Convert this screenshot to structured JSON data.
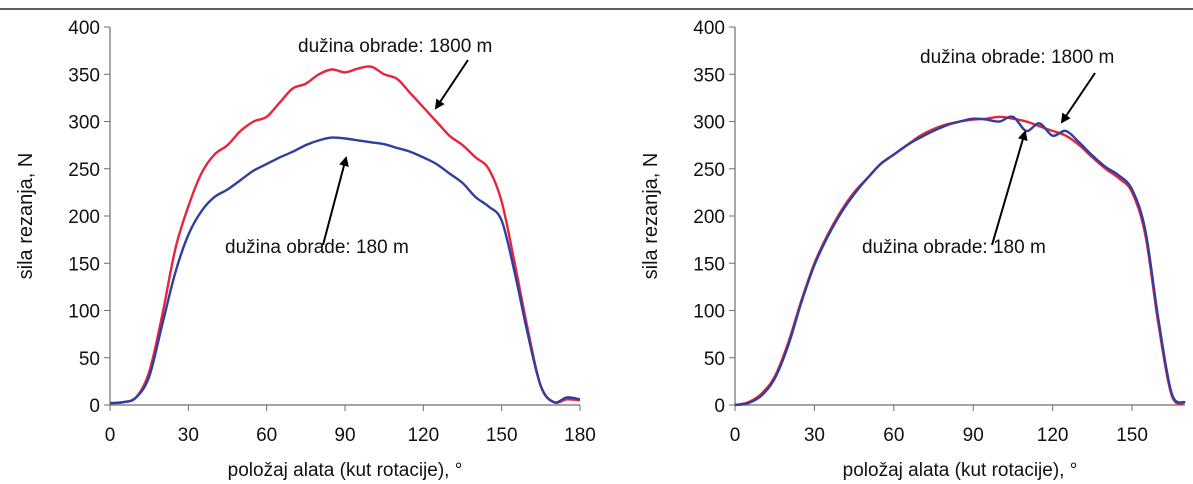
{
  "figure": {
    "colors": {
      "long_cut": "#e8243c",
      "short_cut": "#2f3fa0",
      "axis": "#6e6e6e",
      "text": "#111111"
    }
  },
  "chart_data": [
    {
      "type": "line",
      "title": "",
      "xlabel": "položaj alata (kut rotacije), °",
      "ylabel": "sila rezanja, N",
      "xlim": [
        0,
        180
      ],
      "ylim": [
        0,
        400
      ],
      "xticks": [
        0,
        30,
        60,
        90,
        120,
        150,
        180
      ],
      "yticks": [
        0,
        50,
        100,
        150,
        200,
        250,
        300,
        350,
        400
      ],
      "grid": false,
      "legend": "none",
      "annotations": [
        {
          "text": "dužina obrade: 1800 m",
          "points_to_series": 0
        },
        {
          "text": "dužina obrade: 180 m",
          "points_to_series": 1
        }
      ],
      "series": [
        {
          "color": "#e8243c",
          "x": [
            0,
            5,
            10,
            15,
            20,
            25,
            30,
            35,
            40,
            45,
            50,
            55,
            60,
            65,
            70,
            75,
            80,
            85,
            90,
            95,
            100,
            105,
            110,
            115,
            120,
            125,
            130,
            135,
            140,
            145,
            150,
            155,
            160,
            165,
            170,
            175,
            180
          ],
          "values": [
            2,
            3,
            8,
            35,
            95,
            165,
            210,
            245,
            265,
            275,
            290,
            300,
            305,
            320,
            335,
            340,
            350,
            355,
            352,
            356,
            358,
            350,
            345,
            330,
            315,
            300,
            285,
            275,
            262,
            250,
            215,
            150,
            80,
            20,
            3,
            6,
            5
          ]
        },
        {
          "color": "#2f3fa0",
          "x": [
            0,
            5,
            10,
            15,
            20,
            25,
            30,
            35,
            40,
            45,
            50,
            55,
            60,
            65,
            70,
            75,
            80,
            85,
            90,
            95,
            100,
            105,
            110,
            115,
            120,
            125,
            130,
            135,
            140,
            145,
            150,
            155,
            160,
            165,
            170,
            175,
            180
          ],
          "values": [
            2,
            3,
            8,
            30,
            85,
            140,
            180,
            205,
            220,
            228,
            238,
            248,
            255,
            262,
            268,
            275,
            280,
            283,
            282,
            280,
            278,
            276,
            272,
            268,
            262,
            255,
            245,
            235,
            220,
            210,
            195,
            140,
            75,
            20,
            3,
            8,
            6
          ]
        }
      ]
    },
    {
      "type": "line",
      "title": "",
      "xlabel": "položaj alata (kut rotacije), °",
      "ylabel": "sila rezanja, N",
      "xlim": [
        0,
        170
      ],
      "ylim": [
        0,
        400
      ],
      "xticks": [
        0,
        30,
        60,
        90,
        120,
        150
      ],
      "yticks": [
        0,
        50,
        100,
        150,
        200,
        250,
        300,
        350,
        400
      ],
      "grid": false,
      "legend": "none",
      "annotations": [
        {
          "text": "dužina obrade: 1800 m",
          "points_to_series": 0
        },
        {
          "text": "dužina obrade: 180 m",
          "points_to_series": 1
        }
      ],
      "series": [
        {
          "color": "#e8243c",
          "x": [
            0,
            5,
            10,
            15,
            20,
            25,
            30,
            35,
            40,
            45,
            50,
            55,
            60,
            65,
            70,
            75,
            80,
            85,
            90,
            95,
            100,
            105,
            110,
            115,
            120,
            125,
            130,
            135,
            140,
            145,
            150,
            155,
            160,
            165,
            170
          ],
          "values": [
            0,
            3,
            12,
            30,
            65,
            110,
            150,
            180,
            205,
            225,
            240,
            255,
            265,
            275,
            285,
            292,
            297,
            300,
            302,
            303,
            305,
            303,
            300,
            295,
            290,
            285,
            275,
            262,
            250,
            240,
            225,
            180,
            85,
            10,
            2
          ]
        },
        {
          "color": "#2f3fa0",
          "x": [
            0,
            5,
            10,
            15,
            20,
            25,
            30,
            35,
            40,
            45,
            50,
            55,
            60,
            65,
            70,
            75,
            80,
            85,
            90,
            95,
            100,
            105,
            110,
            115,
            120,
            125,
            130,
            135,
            140,
            145,
            150,
            155,
            160,
            165,
            170
          ],
          "values": [
            0,
            2,
            10,
            28,
            62,
            108,
            148,
            178,
            203,
            223,
            240,
            255,
            265,
            275,
            283,
            290,
            296,
            300,
            303,
            302,
            300,
            305,
            290,
            298,
            285,
            290,
            278,
            264,
            252,
            243,
            228,
            185,
            90,
            12,
            3
          ]
        }
      ]
    }
  ]
}
